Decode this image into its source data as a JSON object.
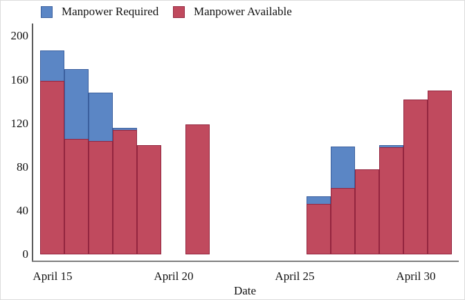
{
  "chart_data": {
    "type": "bar",
    "mode": "overlaid-histogram",
    "title": "",
    "xlabel": "Date",
    "ylabel": "",
    "ylim": [
      0,
      200
    ],
    "grid": false,
    "legend_position": "top-left",
    "y_ticks": [
      0,
      40,
      80,
      120,
      160,
      200
    ],
    "x_ticks": [
      {
        "label": "April 15",
        "day": 0
      },
      {
        "label": "April 20",
        "day": 5
      },
      {
        "label": "April 25",
        "day": 10
      },
      {
        "label": "April 30",
        "day": 15
      }
    ],
    "categories": [
      "April 15",
      "April 16",
      "April 17",
      "April 18",
      "April 19",
      "April 21",
      "April 26",
      "April 27",
      "April 28",
      "April 29",
      "April 30",
      "May 1"
    ],
    "day_offsets": [
      0,
      1,
      2,
      3,
      4,
      6,
      11,
      12,
      13,
      14,
      15,
      16
    ],
    "series": [
      {
        "name": "Manpower Required",
        "color": "#5B86C5",
        "edge": "#3A5F9E",
        "values": [
          187,
          170,
          148,
          116,
          null,
          null,
          53,
          99,
          null,
          100,
          null,
          null
        ]
      },
      {
        "name": "Manpower Available",
        "color": "#C04A5E",
        "edge": "#93253F",
        "values": [
          159,
          106,
          104,
          114,
          100,
          119,
          46,
          61,
          78,
          98,
          142,
          150
        ]
      }
    ]
  }
}
